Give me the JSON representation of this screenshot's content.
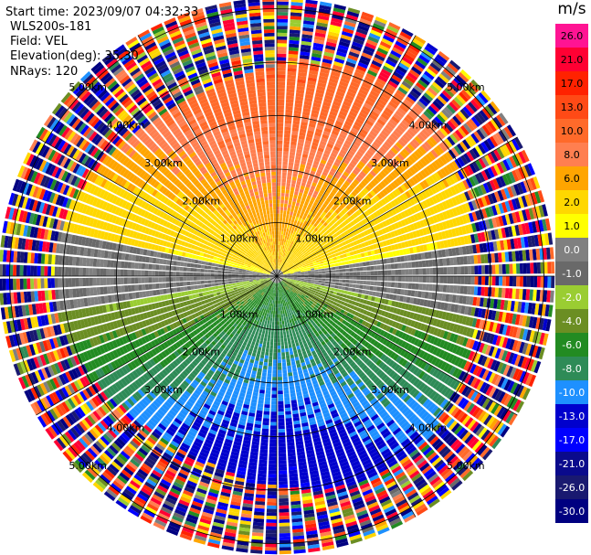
{
  "header": {
    "start_time": "Start time: 2023/09/07 04:32:33",
    "instrument": "WLS200s-181",
    "field": "Field: VEL",
    "elevation": "Elevation(deg): 35.30",
    "nrays": "NRays: 120"
  },
  "chart_data": {
    "type": "heatmap",
    "projection": "polar-ppi",
    "nrays": 120,
    "range_rings_km": [
      1,
      2,
      3,
      4,
      5
    ],
    "spokes_deg": [
      0,
      30,
      60,
      90,
      120,
      150,
      180,
      210,
      240,
      270,
      300,
      330
    ],
    "ring_labels": [
      "1.00km",
      "2.00km",
      "3.00km",
      "4.00km",
      "5.00km"
    ],
    "max_range_km": 5.2,
    "velocity_unit": "m/s",
    "colorbar": {
      "title": "m/s",
      "tick_labels": [
        "26.0",
        "21.0",
        "17.0",
        "13.0",
        "10.0",
        "8.0",
        "6.0",
        "2.0",
        "1.0",
        "0.0",
        "-1.0",
        "-2.0",
        "-4.0",
        "-6.0",
        "-8.0",
        "-10.0",
        "-13.0",
        "-17.0",
        "-21.0",
        "-26.0",
        "-30.0"
      ],
      "colors": [
        "#ff1493",
        "#ff0033",
        "#ff2200",
        "#ff4a16",
        "#ff6a2a",
        "#ff7f50",
        "#ffa500",
        "#ffd700",
        "#ffff00",
        "#808080",
        "#696969",
        "#9acd32",
        "#6b8e23",
        "#228b22",
        "#2e8b57",
        "#1e90ff",
        "#0000cd",
        "#0000ff",
        "#0a0a8c",
        "#191970",
        "#000080"
      ]
    }
  }
}
